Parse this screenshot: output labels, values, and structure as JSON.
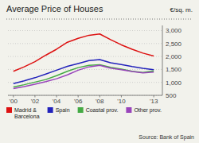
{
  "chart_data": {
    "type": "line",
    "title": "Average Price of Houses",
    "y_label": "€/sq. m.",
    "annotations": [
      "Source: Bank of Spain"
    ],
    "x": [
      2000,
      2001,
      2002,
      2003,
      2004,
      2005,
      2006,
      2007,
      2008,
      2009,
      2010,
      2011,
      2012,
      2013
    ],
    "series": [
      {
        "name": "Madrid &\nBarcelona",
        "color": "#dd1111",
        "values": [
          1430,
          1600,
          1800,
          2050,
          2280,
          2550,
          2700,
          2820,
          2870,
          2650,
          2450,
          2280,
          2130,
          2020
        ]
      },
      {
        "name": "Spain",
        "color": "#2222bb",
        "values": [
          950,
          1060,
          1180,
          1320,
          1470,
          1620,
          1730,
          1840,
          1880,
          1760,
          1690,
          1610,
          1540,
          1490
        ]
      },
      {
        "name": "Coastal prov.",
        "color": "#44aa44",
        "values": [
          820,
          910,
          1010,
          1110,
          1260,
          1430,
          1570,
          1660,
          1680,
          1580,
          1510,
          1430,
          1380,
          1440
        ]
      },
      {
        "name": "Other prov.",
        "color": "#9944bb",
        "values": [
          760,
          840,
          930,
          1030,
          1140,
          1290,
          1470,
          1600,
          1660,
          1550,
          1490,
          1420,
          1370,
          1400
        ]
      }
    ],
    "xlim": [
      1999.5,
      2013.8
    ],
    "xticks": [
      {
        "value": 2000,
        "label": "'00"
      },
      {
        "value": 2002,
        "label": "'02"
      },
      {
        "value": 2004,
        "label": "'04"
      },
      {
        "value": 2006,
        "label": "'06"
      },
      {
        "value": 2008,
        "label": "'08"
      },
      {
        "value": 2010,
        "label": "'10"
      },
      {
        "value": 2013,
        "label": "'13"
      }
    ],
    "ylim": [
      500,
      3200
    ],
    "yticks": [
      500,
      {
        "value": 1000,
        "label": "1,000"
      },
      {
        "value": 1500,
        "label": "1,500"
      },
      {
        "value": 2000,
        "label": "2,000"
      },
      {
        "value": 2500,
        "label": "2,500"
      },
      {
        "value": 3000,
        "label": "3,000"
      }
    ],
    "grid": true,
    "legend": "bottom"
  }
}
